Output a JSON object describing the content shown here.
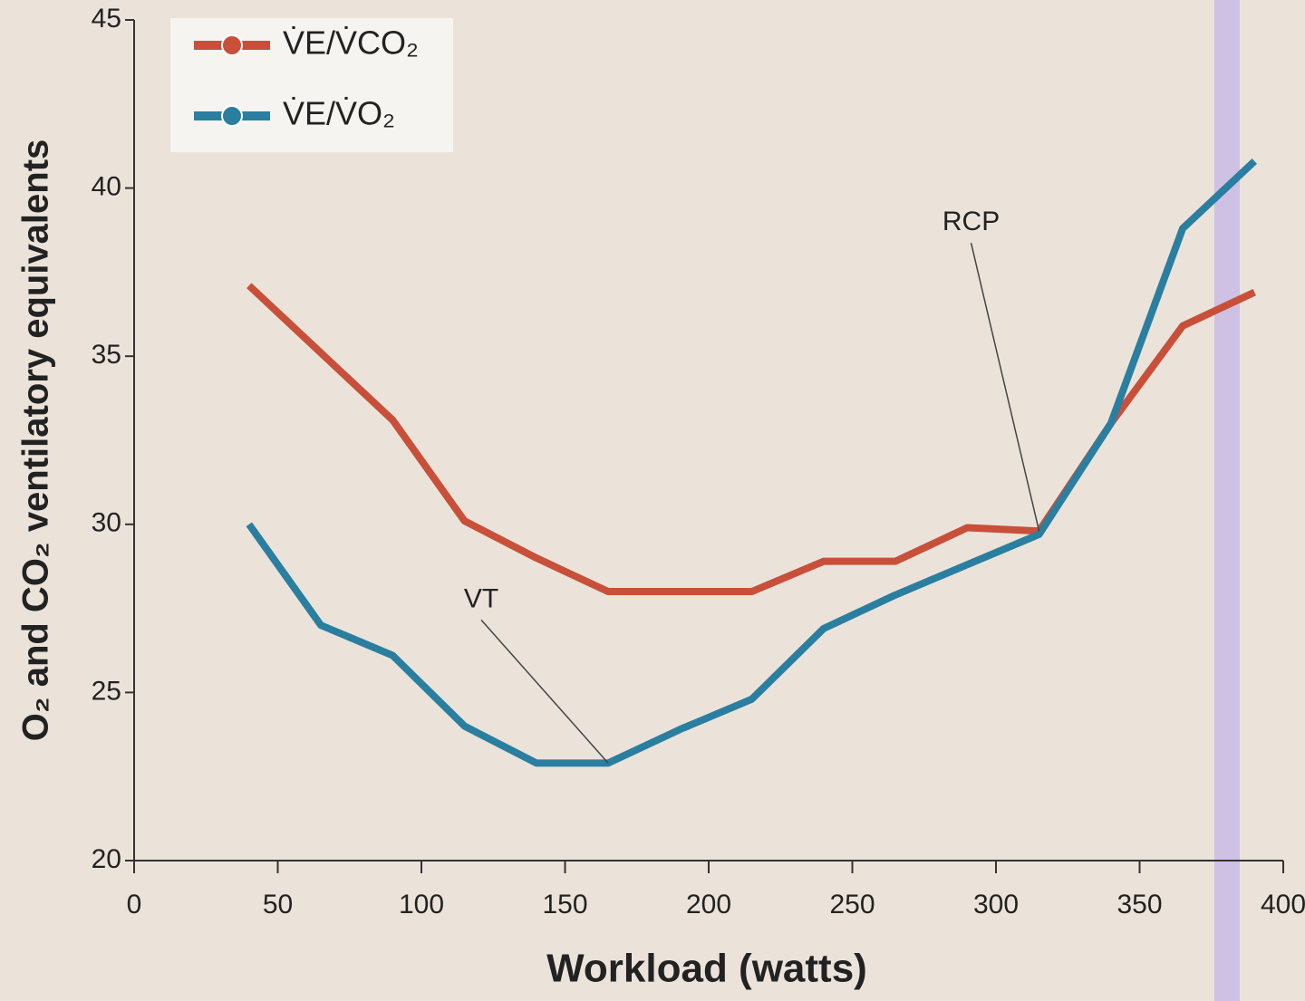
{
  "chart_data": {
    "type": "line",
    "x_label": "Workload (watts)",
    "y_label": "O₂ and CO₂ ventilatory equivalents",
    "x": [
      40,
      65,
      90,
      115,
      140,
      165,
      190,
      215,
      240,
      265,
      290,
      315,
      340,
      365,
      390
    ],
    "series": [
      {
        "name": "V̇E/V̇CO₂",
        "color": "#c8503a",
        "values": [
          37.1,
          35.1,
          33.1,
          30.1,
          29,
          28,
          28,
          28,
          28.9,
          28.9,
          29.9,
          29.8,
          33,
          35.9,
          36.9
        ]
      },
      {
        "name": "V̇E/V̇O₂",
        "color": "#2a7fa0",
        "values": [
          30,
          27,
          26.1,
          24,
          22.9,
          22.9,
          23.9,
          24.8,
          26.9,
          27.9,
          28.8,
          29.7,
          33,
          38.8,
          40.8
        ]
      }
    ],
    "annotations": [
      {
        "text": "VT",
        "x": 165,
        "y": 22.9
      },
      {
        "text": "RCP",
        "x": 315,
        "y": 29.8
      }
    ],
    "xlim": [
      0,
      400
    ],
    "xticks": [
      0,
      50,
      100,
      150,
      200,
      250,
      300,
      350,
      400
    ],
    "ylim": [
      20,
      45
    ],
    "yticks": [
      20,
      25,
      30,
      35,
      40,
      45
    ],
    "legend": "top-left"
  }
}
